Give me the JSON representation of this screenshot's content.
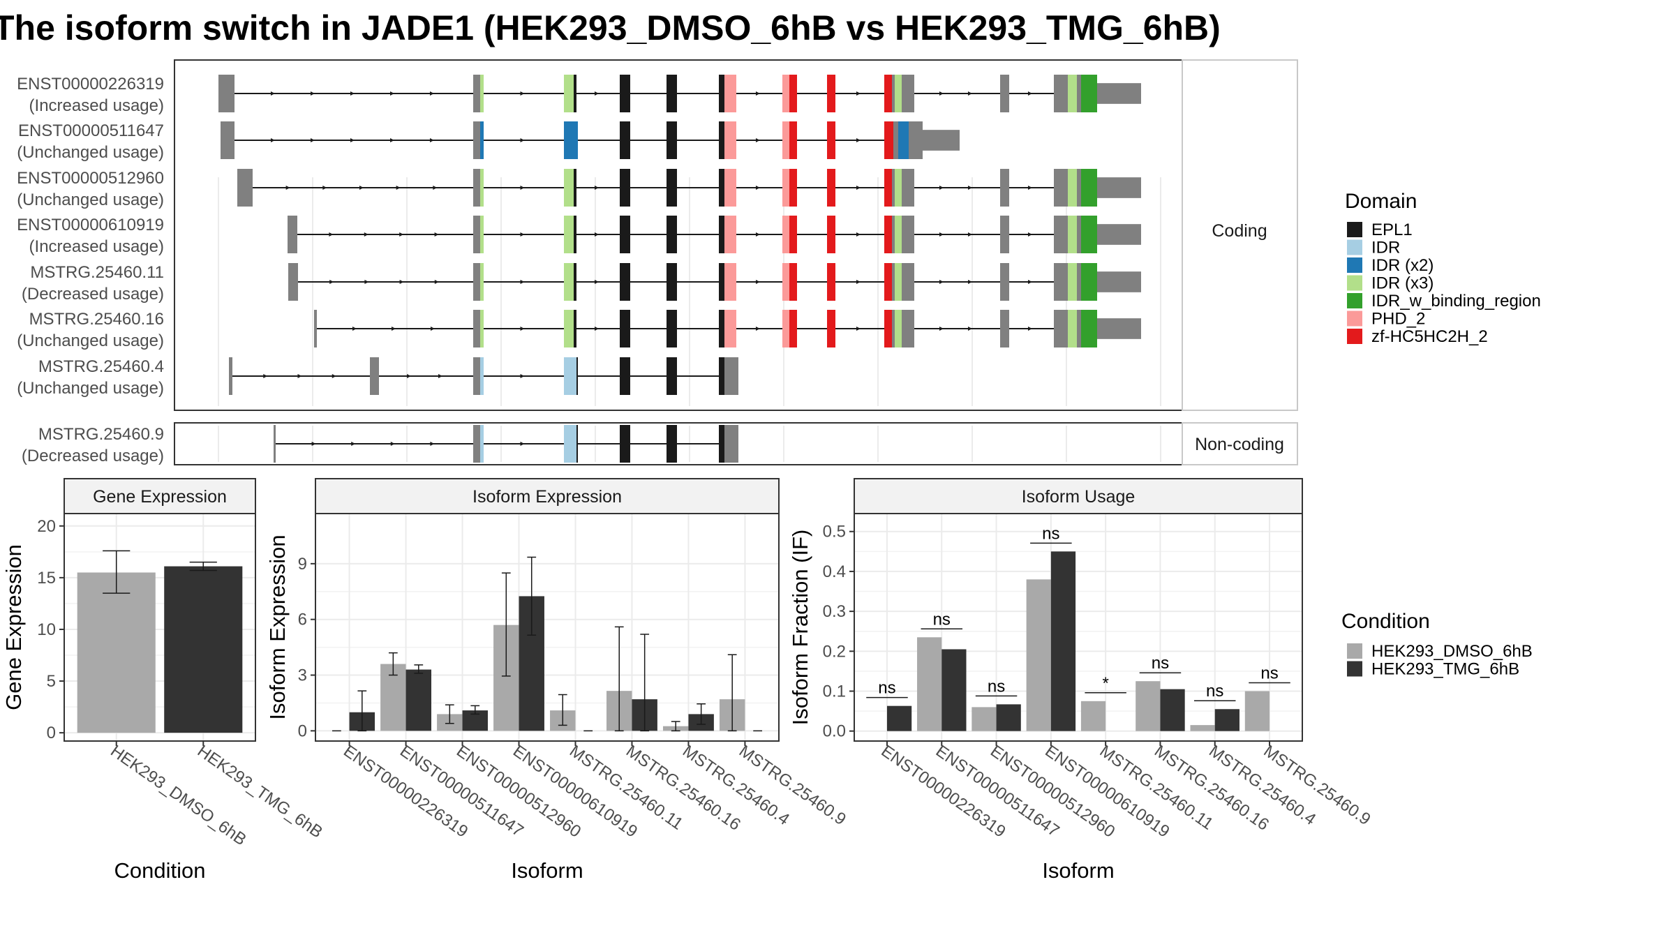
{
  "title": "The isoform switch in JADE1 (HEK293_DMSO_6hB vs HEK293_TMG_6hB)",
  "colors": {
    "domains": {
      "EPL1": "#1a1a1a",
      "IDR": "#a6cee3",
      "IDR (x2)": "#1f78b4",
      "IDR (x3)": "#b2df8a",
      "IDR_w_binding_region": "#33a02c",
      "PHD_2": "#fb9a99",
      "zf-HC5HC2H_2": "#e31a1c"
    },
    "exon": "#808080",
    "condition": {
      "HEK293_DMSO_6hB": "#a9a9a9",
      "HEK293_TMG_6hB": "#333333"
    }
  },
  "structure": {
    "coding_label": "Coding",
    "noncoding_label": "Non-coding",
    "isoforms": [
      {
        "id": "ENST00000226319",
        "usage": "(Increased usage)",
        "group": "coding"
      },
      {
        "id": "ENST00000511647",
        "usage": "(Unchanged usage)",
        "group": "coding"
      },
      {
        "id": "ENST00000512960",
        "usage": "(Unchanged usage)",
        "group": "coding"
      },
      {
        "id": "ENST00000610919",
        "usage": "(Increased usage)",
        "group": "coding"
      },
      {
        "id": "MSTRG.25460.11",
        "usage": "(Decreased usage)",
        "group": "coding"
      },
      {
        "id": "MSTRG.25460.16",
        "usage": "(Unchanged usage)",
        "group": "coding"
      },
      {
        "id": "MSTRG.25460.4",
        "usage": "(Unchanged usage)",
        "group": "coding"
      },
      {
        "id": "MSTRG.25460.9",
        "usage": "(Decreased usage)",
        "group": "noncoding"
      }
    ]
  },
  "legend_domain": {
    "title": "Domain",
    "items": [
      "EPL1",
      "IDR",
      "IDR (x2)",
      "IDR (x3)",
      "IDR_w_binding_region",
      "PHD_2",
      "zf-HC5HC2H_2"
    ]
  },
  "legend_condition": {
    "title": "Condition",
    "items": [
      "HEK293_DMSO_6hB",
      "HEK293_TMG_6hB"
    ]
  },
  "chart_data": [
    {
      "type": "bar",
      "title": "Gene Expression",
      "xlabel": "Condition",
      "ylabel": "Gene Expression",
      "categories": [
        "HEK293_DMSO_6hB",
        "HEK293_TMG_6hB"
      ],
      "values": [
        15.5,
        16.1
      ],
      "error_low": [
        13.5,
        15.7
      ],
      "error_high": [
        17.6,
        16.5
      ],
      "ylim": [
        -0.8,
        21.2
      ],
      "yticks": [
        0,
        5,
        10,
        15,
        20
      ]
    },
    {
      "type": "bar",
      "title": "Isoform Expression",
      "xlabel": "Isoform",
      "ylabel": "Isoform Expression",
      "categories": [
        "ENST00000226319",
        "ENST00000511647",
        "ENST00000512960",
        "ENST00000610919",
        "MSTRG.25460.11",
        "MSTRG.25460.16",
        "MSTRG.25460.4",
        "MSTRG.25460.9"
      ],
      "series": [
        {
          "name": "HEK293_DMSO_6hB",
          "values": [
            0.0,
            3.6,
            0.9,
            5.7,
            1.1,
            2.15,
            0.25,
            1.7
          ],
          "error_low": [
            0.0,
            3.0,
            0.4,
            2.95,
            0.3,
            0.0,
            0.0,
            0.0
          ],
          "error_high": [
            0.0,
            4.2,
            1.4,
            8.5,
            1.95,
            5.6,
            0.5,
            4.1
          ]
        },
        {
          "name": "HEK293_TMG_6hB",
          "values": [
            1.0,
            3.3,
            1.1,
            7.25,
            0.0,
            1.7,
            0.9,
            0.0
          ],
          "error_low": [
            0.0,
            3.1,
            0.9,
            5.15,
            0.0,
            0.0,
            0.35,
            0.0
          ],
          "error_high": [
            2.15,
            3.55,
            1.35,
            9.35,
            0.0,
            5.2,
            1.45,
            0.0
          ]
        }
      ],
      "ylim": [
        -0.55,
        11.7
      ],
      "yticks": [
        0,
        3,
        6,
        9
      ]
    },
    {
      "type": "bar",
      "title": "Isoform Usage",
      "xlabel": "Isoform",
      "ylabel": "Isoform Fraction (IF)",
      "categories": [
        "ENST00000226319",
        "ENST00000511647",
        "ENST00000512960",
        "ENST00000610919",
        "MSTRG.25460.11",
        "MSTRG.25460.16",
        "MSTRG.25460.4",
        "MSTRG.25460.9"
      ],
      "series": [
        {
          "name": "HEK293_DMSO_6hB",
          "values": [
            0.0,
            0.235,
            0.06,
            0.38,
            0.075,
            0.125,
            0.015,
            0.1
          ]
        },
        {
          "name": "HEK293_TMG_6hB",
          "values": [
            0.063,
            0.205,
            0.067,
            0.45,
            0.0,
            0.105,
            0.055,
            0.0
          ]
        }
      ],
      "significance": [
        "ns",
        "ns",
        "ns",
        "ns",
        "*",
        "ns",
        "ns",
        "ns"
      ],
      "ylim": [
        -0.025,
        0.545
      ],
      "yticks": [
        0.0,
        0.1,
        0.2,
        0.3,
        0.4,
        0.5
      ],
      "ytick_labels": [
        "0.0",
        "0.1",
        "0.2",
        "0.3",
        "0.4",
        "0.5"
      ]
    }
  ]
}
